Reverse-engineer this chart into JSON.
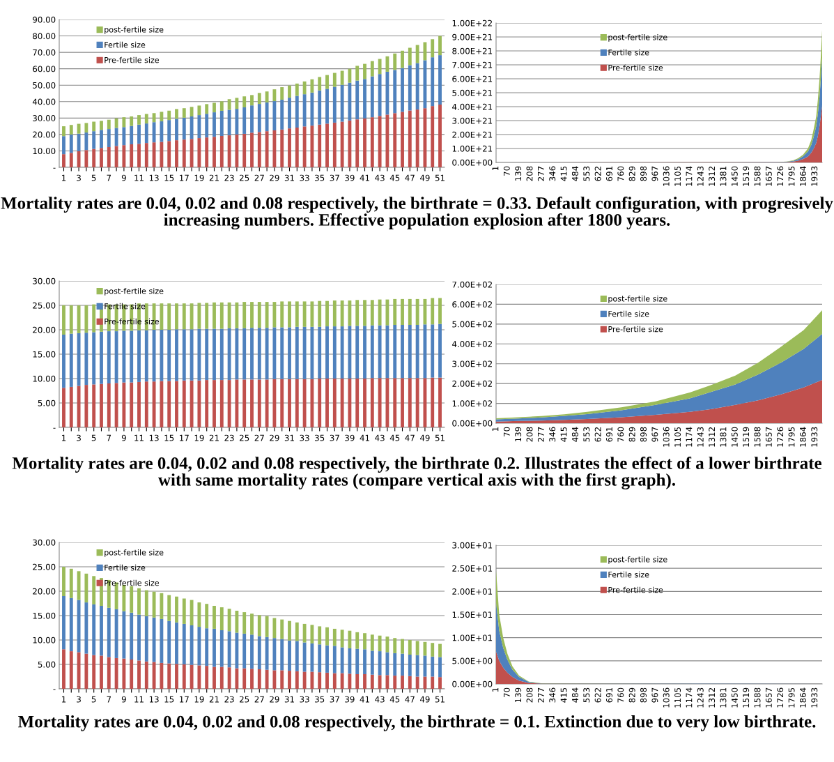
{
  "chart_data": [
    {
      "type": "bar",
      "stacked": true,
      "grid": "y",
      "legend": "top left",
      "categories": [
        "1",
        null,
        "3",
        null,
        "5",
        null,
        "7",
        null,
        "9",
        null,
        "11",
        null,
        "13",
        null,
        "15",
        null,
        "17",
        null,
        "19",
        null,
        "21",
        null,
        "23",
        null,
        "25",
        null,
        "27",
        null,
        "29",
        null,
        "31",
        null,
        "33",
        null,
        "35",
        null,
        "37",
        null,
        "39",
        null,
        "41",
        null,
        "43",
        null,
        "45",
        null,
        "47",
        null,
        "49",
        null,
        "51"
      ],
      "ylim": [
        0,
        90
      ],
      "yticks": [
        {
          "value": 0,
          "label": "-"
        },
        {
          "value": 10,
          "label": "10.00"
        },
        {
          "value": 20,
          "label": "20.00"
        },
        {
          "value": 30,
          "label": "30.00"
        },
        {
          "value": 40,
          "label": "40.00"
        },
        {
          "value": 50,
          "label": "50.00"
        },
        {
          "value": 60,
          "label": "60.00"
        },
        {
          "value": 70,
          "label": "70.00"
        },
        {
          "value": 80,
          "label": "80.00"
        },
        {
          "value": 90,
          "label": "90.00"
        }
      ],
      "series": [
        {
          "name": "Pre-fertile size",
          "color": "#c0504d",
          "values": [
            8,
            8.8,
            9.8,
            10.5,
            11.2,
            11.8,
            12.3,
            13,
            13.5,
            14,
            14.3,
            14.8,
            15.2,
            15.5,
            16,
            16.5,
            16.9,
            17.3,
            17.8,
            18.2,
            18.6,
            19.1,
            19.5,
            20,
            20.4,
            21.1,
            21.5,
            22,
            22.5,
            23,
            23.7,
            24.2,
            24.9,
            25.4,
            26,
            26.6,
            27.2,
            27.8,
            28.5,
            29.2,
            29.8,
            30.5,
            31.3,
            32.1,
            33,
            33.8,
            34.6,
            35.2,
            36,
            37.3,
            38.2
          ]
        },
        {
          "name": "Fertile size",
          "color": "#4f81bd",
          "values": [
            11,
            11.2,
            10.7,
            10.7,
            10.8,
            11,
            11,
            11,
            11,
            11.2,
            11.7,
            11.9,
            12.3,
            12.5,
            12.8,
            13.1,
            13.3,
            13.7,
            14,
            14.4,
            14.9,
            15.3,
            15.5,
            15.6,
            16.1,
            16.6,
            17.1,
            17.5,
            17.8,
            18.2,
            18.7,
            19.3,
            19.6,
            20.1,
            20.8,
            21.2,
            21.8,
            22.4,
            23,
            23.6,
            24,
            24.9,
            25.5,
            26.1,
            26.3,
            26.7,
            27.6,
            28.3,
            29.2,
            29.7,
            30.1
          ]
        },
        {
          "name": "post-fertile size",
          "color": "#9bbb59",
          "values": [
            6,
            5.8,
            6,
            5.8,
            5.8,
            5.5,
            5.7,
            5.8,
            6,
            5.8,
            5.8,
            5.8,
            5.5,
            5.8,
            5.7,
            5.9,
            5.8,
            5.8,
            5.8,
            5.9,
            5.8,
            5.8,
            6.5,
            6.7,
            6.7,
            6.3,
            6.7,
            6.7,
            7.2,
            7.6,
            7.4,
            7.5,
            7.8,
            8.1,
            8.2,
            8.4,
            8.5,
            8.6,
            8.5,
            9,
            9.2,
            9.3,
            9.2,
            9.4,
            10,
            10.5,
            10.6,
            11,
            11,
            11,
            11.7
          ]
        }
      ],
      "annotations": [
        "Mortality rates are 0.04, 0.02 and 0.08 respectively, the birthrate = 0.33. Default configuration, with progresively increasing numbers. Effective population explosion after 1800 years."
      ]
    },
    {
      "type": "area",
      "stacked": true,
      "grid": "y",
      "legend": "top",
      "xlim": [
        1,
        1976
      ],
      "xticks": [
        1,
        70,
        139,
        208,
        277,
        346,
        415,
        484,
        553,
        622,
        691,
        760,
        829,
        898,
        967,
        1036,
        1105,
        1174,
        1243,
        1312,
        1381,
        1450,
        1519,
        1588,
        1657,
        1726,
        1795,
        1864,
        1933
      ],
      "x": [
        1,
        1700,
        1760,
        1800,
        1830,
        1860,
        1890,
        1910,
        1925,
        1940,
        1950,
        1960,
        1968,
        1976
      ],
      "ylim": [
        0,
        1e+22
      ],
      "yticks": [
        {
          "value": 0,
          "label": "0.00E+00"
        },
        {
          "value": 1e+21,
          "label": "1.00E+21"
        },
        {
          "value": 2e+21,
          "label": "2.00E+21"
        },
        {
          "value": 3e+21,
          "label": "3.00E+21"
        },
        {
          "value": 4e+21,
          "label": "4.00E+21"
        },
        {
          "value": 5e+21,
          "label": "5.00E+21"
        },
        {
          "value": 6e+21,
          "label": "6.00E+21"
        },
        {
          "value": 7e+21,
          "label": "7.00E+21"
        },
        {
          "value": 8e+21,
          "label": "8.00E+21"
        },
        {
          "value": 9e+21,
          "label": "9.00E+21"
        },
        {
          "value": 1e+22,
          "label": "1.00E+22"
        }
      ],
      "series": [
        {
          "name": "Pre-fertile size",
          "color": "#c0504d",
          "values": [
            0,
            1e+19,
            3e+19,
            6e+19,
            1.3e+20,
            2.4e+20,
            4.3e+20,
            7e+20,
            1e+21,
            1.4e+21,
            1.9e+21,
            2.6e+21,
            3.3e+21,
            4.1e+21
          ]
        },
        {
          "name": "Fertile size",
          "color": "#4f81bd",
          "values": [
            0,
            1e+19,
            2e+19,
            5e+19,
            1e+20,
            2e+20,
            3.6e+20,
            5.5e+20,
            8.5e+20,
            1.2e+21,
            1.6e+21,
            2.1e+21,
            2.7e+21,
            3.4e+21
          ]
        },
        {
          "name": "post-fertile size",
          "color": "#9bbb59",
          "values": [
            0,
            0,
            1e+19,
            4e+19,
            7e+19,
            1.1e+20,
            2.1e+20,
            3.5e+20,
            5.5e+20,
            7e+20,
            1e+21,
            1.3e+21,
            1.6e+21,
            2e+21
          ]
        }
      ]
    },
    {
      "type": "bar",
      "stacked": true,
      "grid": "y",
      "legend": "top left",
      "categories": [
        "1",
        null,
        "3",
        null,
        "5",
        null,
        "7",
        null,
        "9",
        null,
        "11",
        null,
        "13",
        null,
        "15",
        null,
        "17",
        null,
        "19",
        null,
        "21",
        null,
        "23",
        null,
        "25",
        null,
        "27",
        null,
        "29",
        null,
        "31",
        null,
        "33",
        null,
        "35",
        null,
        "37",
        null,
        "39",
        null,
        "41",
        null,
        "43",
        null,
        "45",
        null,
        "47",
        null,
        "49",
        null,
        "51"
      ],
      "ylim": [
        0,
        30
      ],
      "yticks": [
        {
          "value": 0,
          "label": "-"
        },
        {
          "value": 5,
          "label": "5.00"
        },
        {
          "value": 10,
          "label": "10.00"
        },
        {
          "value": 15,
          "label": "15.00"
        },
        {
          "value": 20,
          "label": "20.00"
        },
        {
          "value": 25,
          "label": "25.00"
        },
        {
          "value": 30,
          "label": "30.00"
        }
      ],
      "series": [
        {
          "name": "Pre-fertile size",
          "color": "#c0504d",
          "values": [
            8.1,
            8.3,
            8.5,
            8.7,
            8.8,
            8.9,
            9.0,
            9.1,
            9.2,
            9.2,
            9.3,
            9.4,
            9.4,
            9.5,
            9.5,
            9.5,
            9.6,
            9.6,
            9.6,
            9.7,
            9.7,
            9.7,
            9.7,
            9.8,
            9.8,
            9.8,
            9.8,
            9.8,
            9.9,
            9.9,
            9.9,
            9.9,
            9.9,
            9.9,
            10,
            10,
            10,
            10,
            10,
            10,
            10,
            10.1,
            10.1,
            10.1,
            10.1,
            10.1,
            10.1,
            10.1,
            10.1,
            10.2,
            10.2
          ]
        },
        {
          "name": "Fertile size",
          "color": "#4f81bd",
          "values": [
            10.9,
            10.9,
            10.8,
            10.7,
            10.7,
            10.7,
            10.7,
            10.6,
            10.6,
            10.6,
            10.6,
            10.5,
            10.6,
            10.5,
            10.5,
            10.6,
            10.5,
            10.5,
            10.6,
            10.5,
            10.5,
            10.5,
            10.6,
            10.5,
            10.5,
            10.6,
            10.6,
            10.6,
            10.6,
            10.6,
            10.6,
            10.7,
            10.7,
            10.7,
            10.6,
            10.7,
            10.7,
            10.7,
            10.8,
            10.8,
            10.8,
            10.8,
            10.8,
            10.8,
            10.9,
            10.9,
            10.9,
            10.9,
            11.0,
            10.9,
            11.0
          ]
        },
        {
          "name": "post-fertile size",
          "color": "#9bbb59",
          "values": [
            6.0,
            5.8,
            5.7,
            5.6,
            5.7,
            5.6,
            5.5,
            5.5,
            5.4,
            5.4,
            5.5,
            5.5,
            5.4,
            5.4,
            5.4,
            5.3,
            5.3,
            5.3,
            5.3,
            5.3,
            5.4,
            5.4,
            5.3,
            5.3,
            5.4,
            5.3,
            5.3,
            5.3,
            5.2,
            5.3,
            5.3,
            5.2,
            5.2,
            5.2,
            5.3,
            5.2,
            5.3,
            5.3,
            5.2,
            5.3,
            5.3,
            5.2,
            5.3,
            5.3,
            5.3,
            5.3,
            5.3,
            5.3,
            5.2,
            5.4,
            5.3
          ]
        }
      ],
      "annotations": [
        "Mortality rates are 0.04, 0.02 and 0.08 respectively, the birthrate 0.2. Illustrates the effect of a lower birthrate with same mortality rates (compare vertical axis with the first graph)."
      ]
    },
    {
      "type": "area",
      "stacked": true,
      "grid": "y",
      "legend": "top",
      "xlim": [
        1,
        1976
      ],
      "xticks": [
        1,
        70,
        139,
        208,
        277,
        346,
        415,
        484,
        553,
        622,
        691,
        760,
        829,
        898,
        967,
        1036,
        1105,
        1174,
        1243,
        1312,
        1381,
        1450,
        1519,
        1588,
        1657,
        1726,
        1795,
        1864,
        1933
      ],
      "x": [
        1,
        139,
        277,
        415,
        553,
        760,
        967,
        1174,
        1312,
        1450,
        1588,
        1726,
        1864,
        1976
      ],
      "ylim": [
        0,
        700
      ],
      "yticks": [
        {
          "value": 0,
          "label": "0.00E+00"
        },
        {
          "value": 100,
          "label": "1.00E+02"
        },
        {
          "value": 200,
          "label": "2.00E+02"
        },
        {
          "value": 300,
          "label": "3.00E+02"
        },
        {
          "value": 400,
          "label": "4.00E+02"
        },
        {
          "value": 500,
          "label": "5.00E+02"
        },
        {
          "value": 600,
          "label": "6.00E+02"
        },
        {
          "value": 700,
          "label": "7.00E+02"
        }
      ],
      "series": [
        {
          "name": "Pre-fertile size",
          "color": "#c0504d",
          "values": [
            8,
            11,
            13,
            17,
            21,
            30,
            42,
            57,
            72,
            92,
            115,
            145,
            180,
            218
          ]
        },
        {
          "name": "Fertile size",
          "color": "#4f81bd",
          "values": [
            11,
            13,
            16,
            20,
            25,
            35,
            50,
            68,
            88,
            103,
            130,
            160,
            195,
            232
          ]
        },
        {
          "name": "post-fertile size",
          "color": "#9bbb59",
          "values": [
            6,
            6,
            7,
            8,
            11,
            15,
            18,
            30,
            35,
            45,
            60,
            80,
            95,
            120
          ]
        }
      ]
    },
    {
      "type": "bar",
      "stacked": true,
      "grid": "y",
      "legend": "top left",
      "categories": [
        "1",
        null,
        "3",
        null,
        "5",
        null,
        "7",
        null,
        "9",
        null,
        "11",
        null,
        "13",
        null,
        "15",
        null,
        "17",
        null,
        "19",
        null,
        "21",
        null,
        "23",
        null,
        "25",
        null,
        "27",
        null,
        "29",
        null,
        "31",
        null,
        "33",
        null,
        "35",
        null,
        "37",
        null,
        "39",
        null,
        "41",
        null,
        "43",
        null,
        "45",
        null,
        "47",
        null,
        "49",
        null,
        "51"
      ],
      "ylim": [
        0,
        30
      ],
      "yticks": [
        {
          "value": 0,
          "label": "-"
        },
        {
          "value": 5,
          "label": "5.00"
        },
        {
          "value": 10,
          "label": "10.00"
        },
        {
          "value": 15,
          "label": "15.00"
        },
        {
          "value": 20,
          "label": "20.00"
        },
        {
          "value": 25,
          "label": "25.00"
        },
        {
          "value": 30,
          "label": "30.00"
        }
      ],
      "series": [
        {
          "name": "Pre-fertile size",
          "color": "#c0504d",
          "values": [
            8.1,
            7.7,
            7.5,
            7.2,
            6.9,
            6.8,
            6.5,
            6.3,
            6.2,
            6.0,
            5.8,
            5.6,
            5.5,
            5.3,
            5.2,
            5.1,
            5.0,
            4.9,
            4.8,
            4.7,
            4.5,
            4.5,
            4.4,
            4.2,
            4.2,
            4.1,
            4.0,
            3.9,
            3.8,
            3.8,
            3.7,
            3.6,
            3.5,
            3.5,
            3.4,
            3.3,
            3.2,
            3.2,
            3.1,
            3.0,
            3.0,
            2.9,
            2.8,
            2.8,
            2.7,
            2.7,
            2.6,
            2.5,
            2.5,
            2.5,
            2.4
          ]
        },
        {
          "name": "Fertile size",
          "color": "#4f81bd",
          "values": [
            10.9,
            10.9,
            10.7,
            10.5,
            10.4,
            10.2,
            10.1,
            10.0,
            9.7,
            9.6,
            9.4,
            9.3,
            9.1,
            9.0,
            8.7,
            8.5,
            8.3,
            8.1,
            7.9,
            7.7,
            7.8,
            7.5,
            7.4,
            7.3,
            7.1,
            7.0,
            6.8,
            6.7,
            6.6,
            6.4,
            6.2,
            6.2,
            6.0,
            5.8,
            5.7,
            5.6,
            5.6,
            5.3,
            5.2,
            5.2,
            5.1,
            4.9,
            4.9,
            4.7,
            4.6,
            4.5,
            4.4,
            4.4,
            4.3,
            4.1,
            4.1
          ]
        },
        {
          "name": "post-fertile size",
          "color": "#9bbb59",
          "values": [
            6.0,
            6.0,
            5.9,
            5.9,
            5.8,
            5.7,
            5.7,
            5.5,
            5.4,
            5.4,
            5.4,
            5.3,
            5.3,
            5.3,
            5.3,
            5.3,
            5.2,
            5.2,
            5.0,
            5.0,
            4.7,
            4.7,
            4.6,
            4.5,
            4.4,
            4.3,
            4.3,
            4.3,
            4.1,
            4.0,
            4.0,
            3.8,
            3.8,
            3.8,
            3.7,
            3.7,
            3.5,
            3.6,
            3.6,
            3.4,
            3.3,
            3.3,
            3.2,
            3.2,
            3.1,
            3.0,
            3.0,
            2.9,
            2.8,
            2.8,
            2.7
          ]
        }
      ],
      "annotations": [
        "Mortality rates are 0.04, 0.02 and 0.08 respectively, the birthrate = 0.1. Extinction due to very low birthrate."
      ]
    },
    {
      "type": "area",
      "stacked": true,
      "grid": "y",
      "legend": "top",
      "xlim": [
        1,
        1976
      ],
      "xticks": [
        1,
        70,
        139,
        208,
        277,
        346,
        415,
        484,
        553,
        622,
        691,
        760,
        829,
        898,
        967,
        1036,
        1105,
        1174,
        1243,
        1312,
        1381,
        1450,
        1519,
        1588,
        1657,
        1726,
        1795,
        1864,
        1933
      ],
      "x": [
        1,
        20,
        44,
        70,
        100,
        140,
        200,
        280,
        1976
      ],
      "ylim": [
        0,
        30
      ],
      "yticks": [
        {
          "value": 0,
          "label": "0.00E+00"
        },
        {
          "value": 5,
          "label": "5.00E+00"
        },
        {
          "value": 10,
          "label": "1.00E+01"
        },
        {
          "value": 15,
          "label": "1.50E+01"
        },
        {
          "value": 20,
          "label": "2.00E+01"
        },
        {
          "value": 25,
          "label": "2.50E+01"
        },
        {
          "value": 30,
          "label": "3.00E+01"
        }
      ],
      "series": [
        {
          "name": "Pre-fertile size",
          "color": "#c0504d",
          "values": [
            7,
            5,
            3.5,
            2.4,
            1.5,
            0.7,
            0.2,
            0.04,
            0
          ]
        },
        {
          "name": "Fertile size",
          "color": "#4f81bd",
          "values": [
            10.5,
            6.5,
            4.3,
            2.8,
            1.6,
            0.8,
            0.2,
            0.04,
            0
          ]
        },
        {
          "name": "post-fertile size",
          "color": "#9bbb59",
          "values": [
            7,
            3.5,
            2.2,
            1.3,
            0.7,
            0.3,
            0.1,
            0.02,
            0
          ]
        }
      ]
    }
  ]
}
